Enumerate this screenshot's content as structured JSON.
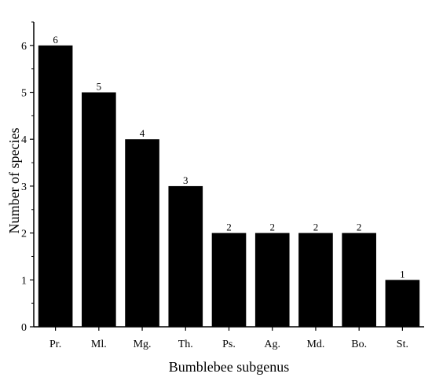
{
  "chart_data": {
    "type": "bar",
    "categories": [
      "Pr.",
      "Ml.",
      "Mg.",
      "Th.",
      "Ps.",
      "Ag.",
      "Md.",
      "Bo.",
      "St."
    ],
    "values": [
      6,
      5,
      4,
      3,
      2,
      2,
      2,
      2,
      1
    ],
    "data_labels": [
      "6",
      "5",
      "4",
      "3",
      "2",
      "2",
      "2",
      "2",
      "1"
    ],
    "title": "",
    "xlabel": "Bumblebee subgenus",
    "ylabel": "Number of species",
    "ylim": [
      0,
      6.5
    ],
    "yticks": [
      "0",
      "1",
      "2",
      "3",
      "4",
      "5",
      "6"
    ],
    "grid": false,
    "bar_color": "#000000"
  }
}
